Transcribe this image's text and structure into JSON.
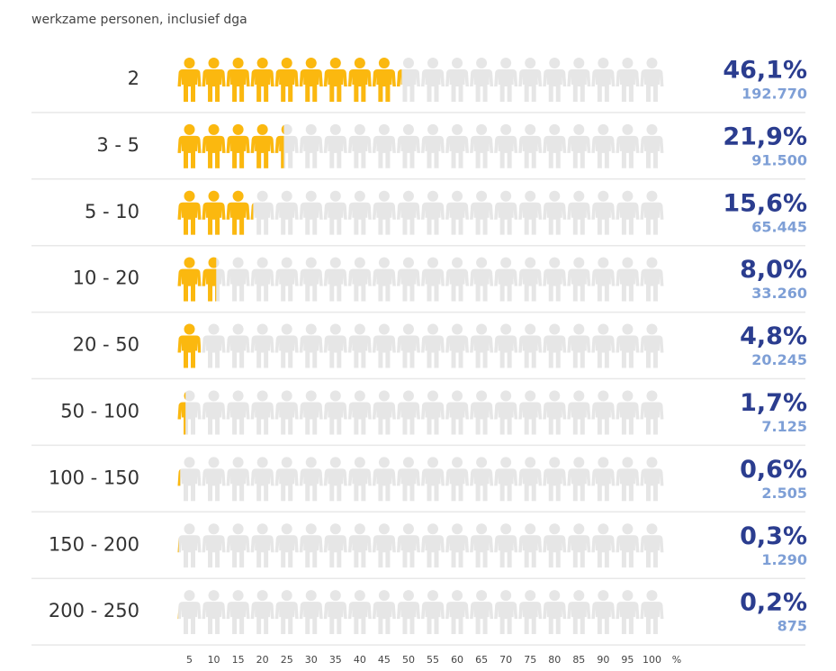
{
  "chart_data": {
    "type": "pictograph",
    "subtitle": "werkzame personen, inclusief dga",
    "categories": [
      "2",
      "3 - 5",
      "5 - 10",
      "10 - 20",
      "20 - 50",
      "50 - 100",
      "100 - 150",
      "150 - 200",
      "200 - 250"
    ],
    "values": [
      46.1,
      21.9,
      15.6,
      8.0,
      4.8,
      1.7,
      0.6,
      0.3,
      0.2
    ],
    "value_labels": [
      "46,1%",
      "21,9%",
      "15,6%",
      "8,0%",
      "4,8%",
      "1,7%",
      "0,6%",
      "0,3%",
      "0,2%"
    ],
    "counts": [
      192770,
      91500,
      65445,
      33260,
      20245,
      7125,
      2505,
      1290,
      875
    ],
    "count_labels": [
      "192.770",
      "91.500",
      "65.445",
      "33.260",
      "20.245",
      "7.125",
      "2.505",
      "1.290",
      "875"
    ],
    "xlim": [
      0,
      100
    ],
    "xticks": [
      5,
      10,
      15,
      20,
      25,
      30,
      35,
      40,
      45,
      50,
      55,
      60,
      65,
      70,
      75,
      80,
      85,
      90,
      95,
      100
    ],
    "x_unit": "%",
    "icon_step": 5,
    "color_start": "#fbb80f",
    "color_end": "#e8702b",
    "empty_color": "#e6e6e6"
  }
}
